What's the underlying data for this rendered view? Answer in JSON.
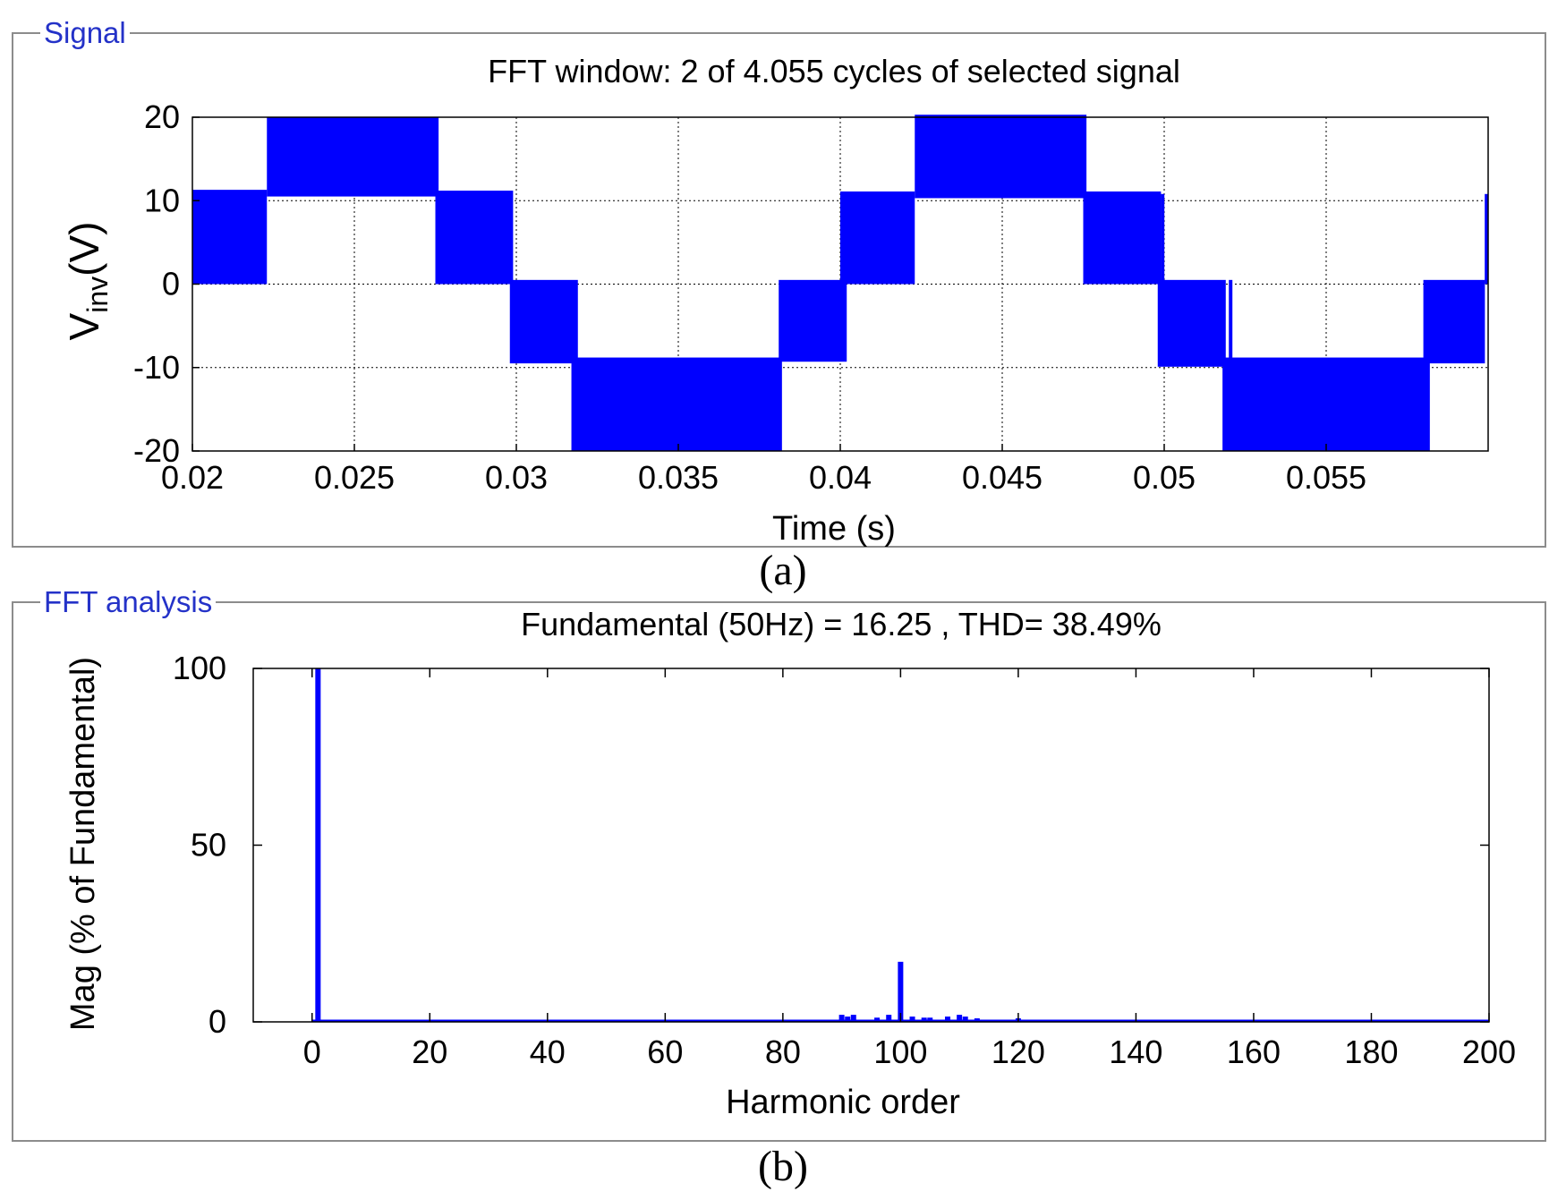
{
  "panels": {
    "signal": {
      "legend": "Signal",
      "caption": "(a)"
    },
    "fft": {
      "legend": "FFT analysis",
      "caption": "(b)"
    }
  },
  "colors": {
    "series": "#0000ff",
    "panel_legend": "#2432c8",
    "panel_border": "#8c8c8c",
    "grid": "#000000"
  },
  "chart_data": [
    {
      "type": "line",
      "title": "FFT window: 2 of 4.055 cycles of selected signal",
      "xlabel": "Time (s)",
      "ylabel_main": "V",
      "ylabel_sub": "inv",
      "ylabel_unit": "(V)",
      "xlim": [
        0.02,
        0.06
      ],
      "ylim": [
        -20,
        20
      ],
      "x_ticks": [
        0.02,
        0.025,
        0.03,
        0.035,
        0.04,
        0.045,
        0.05,
        0.055
      ],
      "x_tick_labels": [
        "0.02",
        "0.025",
        "0.03",
        "0.035",
        "0.04",
        "0.045",
        "0.05",
        "0.055"
      ],
      "y_ticks": [
        20,
        10,
        0,
        -10,
        -20
      ],
      "y_tick_labels": [
        "20",
        "10",
        "0",
        "-10",
        "-20"
      ],
      "grid": true,
      "series": [
        {
          "pwm_bands": [
            {
              "x0": 0.02,
              "x1": 0.0223,
              "low": 0,
              "high": 11.3
            },
            {
              "x0": 0.0223,
              "x1": 0.0276,
              "low": 10.5,
              "high": 20
            },
            {
              "x0": 0.0275,
              "x1": 0.0299,
              "low": 0,
              "high": 11.2
            },
            {
              "x0": 0.0298,
              "x1": 0.0319,
              "low": -9.5,
              "high": 0.5
            },
            {
              "x0": 0.0317,
              "x1": 0.0382,
              "low": -20,
              "high": -8.8
            },
            {
              "x0": 0.0381,
              "x1": 0.0402,
              "low": -9.3,
              "high": 0.5
            },
            {
              "x0": 0.04,
              "x1": 0.0423,
              "low": 0,
              "high": 11.1
            },
            {
              "x0": 0.0423,
              "x1": 0.0476,
              "low": 10.3,
              "high": 20.3
            },
            {
              "x0": 0.0475,
              "x1": 0.0499,
              "low": 0,
              "high": 11.1
            },
            {
              "x0": 0.0498,
              "x1": 0.0519,
              "low": -9.9,
              "high": 0.5
            },
            {
              "x0": 0.0518,
              "x1": 0.0582,
              "low": -20,
              "high": -8.8
            },
            {
              "x0": 0.058,
              "x1": 0.0599,
              "low": -9.5,
              "high": 0.5
            }
          ],
          "spikes": [
            {
              "x": 0.04995,
              "low": 0,
              "high": 10.8
            },
            {
              "x": 0.05205,
              "low": -9.5,
              "high": 0.5
            },
            {
              "x": 0.05995,
              "low": 0,
              "high": 10.8
            }
          ]
        }
      ]
    },
    {
      "type": "bar",
      "title": "Fundamental (50Hz) = 16.25 , THD= 38.49%",
      "xlabel": "Harmonic order",
      "ylabel": "Mag (% of Fundamental)",
      "xlim": [
        -10,
        200
      ],
      "ylim": [
        0,
        100
      ],
      "x_ticks": [
        0,
        20,
        40,
        60,
        80,
        100,
        120,
        140,
        160,
        180,
        200
      ],
      "x_tick_labels": [
        "0",
        "20",
        "40",
        "60",
        "80",
        "100",
        "120",
        "140",
        "160",
        "180",
        "200"
      ],
      "y_ticks": [
        100,
        50,
        0
      ],
      "y_tick_labels": [
        "100",
        "50",
        "0"
      ],
      "grid": false,
      "series": [
        {
          "harmonics": [
            1,
            90,
            91,
            92,
            96,
            98,
            100,
            102,
            104,
            105,
            108,
            110,
            111,
            113,
            120
          ],
          "values": [
            100,
            2,
            1.5,
            2,
            1.2,
            2,
            17,
            1.5,
            1.2,
            1.2,
            1.5,
            2,
            1.5,
            1,
            1
          ]
        }
      ]
    }
  ]
}
